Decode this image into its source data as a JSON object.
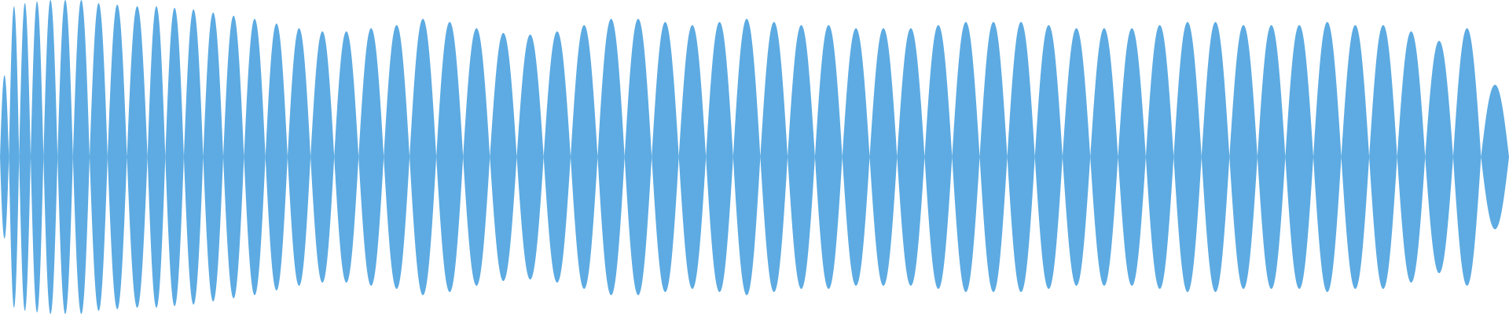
{
  "waveform": {
    "color": "#5dabe2",
    "background": "#ffffff",
    "lobe_count": 62,
    "lobe_peak_envelope": [
      0.52,
      0.96,
      0.98,
      0.99,
      1.0,
      1.0,
      1.0,
      0.98,
      0.97,
      0.96,
      0.96,
      0.95,
      0.94,
      0.92,
      0.9,
      0.88,
      0.85,
      0.82,
      0.8,
      0.8,
      0.82,
      0.84,
      0.88,
      0.86,
      0.82,
      0.79,
      0.78,
      0.8,
      0.84,
      0.88,
      0.88,
      0.86,
      0.84,
      0.86,
      0.88,
      0.86,
      0.84,
      0.84,
      0.82,
      0.82,
      0.82,
      0.84,
      0.86,
      0.86,
      0.86,
      0.84,
      0.82,
      0.82,
      0.82,
      0.84,
      0.86,
      0.86,
      0.84,
      0.84,
      0.84,
      0.86,
      0.84,
      0.84,
      0.8,
      0.74,
      0.82,
      0.46
    ]
  }
}
